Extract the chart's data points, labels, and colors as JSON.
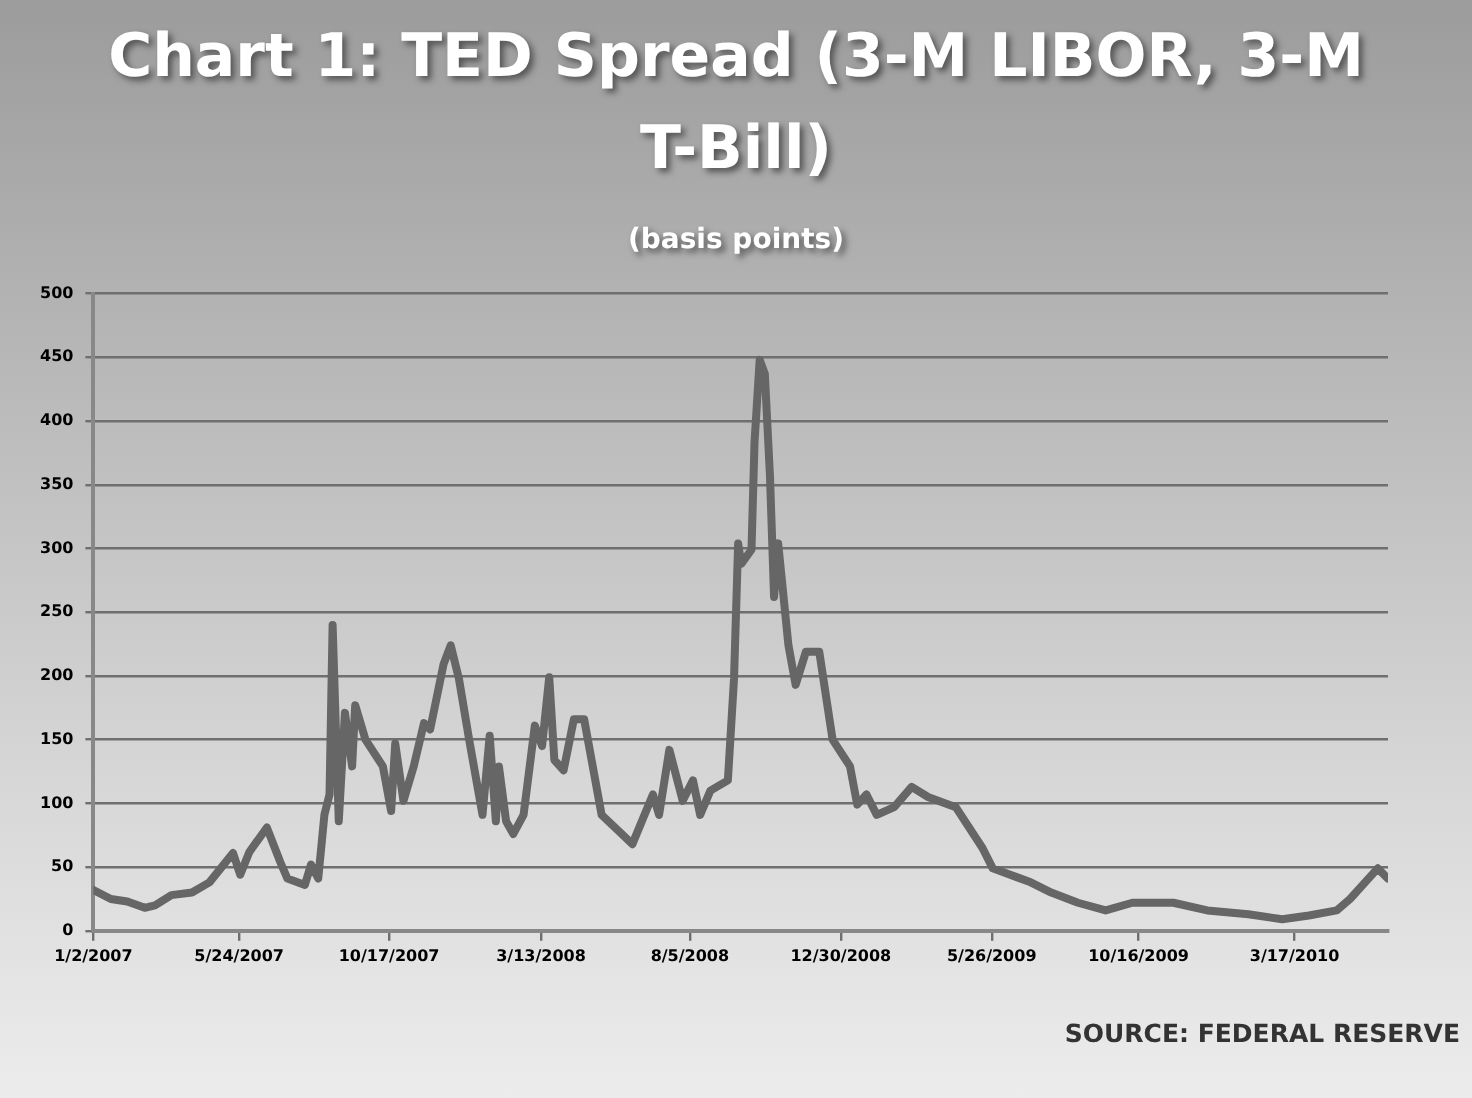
{
  "chart_data": {
    "type": "line",
    "title": "Chart 1: TED Spread (3-M LIBOR, 3-M T-Bill)",
    "subtitle": "(basis points)",
    "annotations": [
      "SOURCE: FEDERAL RESERVE"
    ],
    "x": [
      "2007-01-02",
      "2007-01-19",
      "2007-02-04",
      "2007-02-21",
      "2007-03-03",
      "2007-03-19",
      "2007-04-08",
      "2007-04-25",
      "2007-05-18",
      "2007-05-25",
      "2007-06-03",
      "2007-06-20",
      "2007-07-03",
      "2007-07-10",
      "2007-07-27",
      "2007-08-02",
      "2007-08-09",
      "2007-08-15",
      "2007-08-20",
      "2007-08-23",
      "2007-08-29",
      "2007-09-04",
      "2007-09-11",
      "2007-09-14",
      "2007-09-24",
      "2007-10-11",
      "2007-10-19",
      "2007-10-23",
      "2007-10-31",
      "2007-11-10",
      "2007-11-20",
      "2007-11-26",
      "2007-12-09",
      "2007-12-16",
      "2007-12-24",
      "2008-01-03",
      "2008-01-16",
      "2008-01-23",
      "2008-01-29",
      "2008-02-01",
      "2008-02-08",
      "2008-02-15",
      "2008-02-25",
      "2008-03-07",
      "2008-03-14",
      "2008-03-21",
      "2008-03-26",
      "2008-04-04",
      "2008-04-14",
      "2008-04-24",
      "2008-05-11",
      "2008-05-28",
      "2008-06-10",
      "2008-06-30",
      "2008-07-06",
      "2008-07-16",
      "2008-07-29",
      "2008-08-08",
      "2008-08-15",
      "2008-08-25",
      "2008-09-11",
      "2008-09-17",
      "2008-09-21",
      "2008-09-24",
      "2008-10-04",
      "2008-10-07",
      "2008-10-12",
      "2008-10-17",
      "2008-10-22",
      "2008-10-26",
      "2008-10-30",
      "2008-11-09",
      "2008-11-16",
      "2008-11-26",
      "2008-12-09",
      "2008-12-22",
      "2009-01-08",
      "2009-01-15",
      "2009-01-24",
      "2009-02-03",
      "2009-02-20",
      "2009-03-09",
      "2009-03-25",
      "2009-04-21",
      "2009-05-17",
      "2009-05-27",
      "2009-06-13",
      "2009-07-03",
      "2009-07-23",
      "2009-08-18",
      "2009-09-14",
      "2009-10-10",
      "2009-11-19",
      "2009-12-22",
      "2010-01-31",
      "2010-03-05",
      "2010-03-31",
      "2010-04-27",
      "2010-05-10",
      "2010-06-06",
      "2010-06-16"
    ],
    "series": [
      {
        "color": "#666666",
        "values": [
          32,
          25,
          23,
          18,
          20,
          28,
          30,
          38,
          61,
          44,
          62,
          81,
          54,
          41,
          36,
          52,
          41,
          91,
          107,
          240,
          86,
          171,
          129,
          177,
          150,
          129,
          94,
          147,
          102,
          129,
          163,
          158,
          209,
          224,
          198,
          150,
          91,
          153,
          86,
          129,
          86,
          76,
          91,
          161,
          145,
          199,
          134,
          126,
          166,
          166,
          91,
          78,
          68,
          107,
          91,
          142,
          102,
          118,
          91,
          110,
          118,
          198,
          304,
          288,
          299,
          384,
          448,
          437,
          357,
          262,
          304,
          224,
          193,
          219,
          219,
          150,
          129,
          99,
          107,
          91,
          97,
          113,
          105,
          97,
          65,
          49,
          44,
          38,
          30,
          22,
          16,
          22,
          22,
          16,
          13,
          9,
          12,
          16,
          25,
          49,
          41
        ]
      }
    ],
    "xlim": [
      "2007-01-02",
      "2010-06-16"
    ],
    "xticks": [
      {
        "value": "2007-01-02",
        "label": "1/2/2007"
      },
      {
        "value": "2007-05-24",
        "label": "5/24/2007"
      },
      {
        "value": "2007-10-17",
        "label": "10/17/2007"
      },
      {
        "value": "2008-03-13",
        "label": "3/13/2008"
      },
      {
        "value": "2008-08-05",
        "label": "8/5/2008"
      },
      {
        "value": "2008-12-30",
        "label": "12/30/2008"
      },
      {
        "value": "2009-05-26",
        "label": "5/26/2009"
      },
      {
        "value": "2009-10-16",
        "label": "10/16/2009"
      },
      {
        "value": "2010-03-17",
        "label": "3/17/2010"
      }
    ],
    "ylim": [
      0,
      500
    ],
    "yticks": [
      0,
      50,
      100,
      150,
      200,
      250,
      300,
      350,
      400,
      450,
      500
    ],
    "grid": "y",
    "legend": false,
    "marker": "none",
    "line_style": "solid"
  }
}
